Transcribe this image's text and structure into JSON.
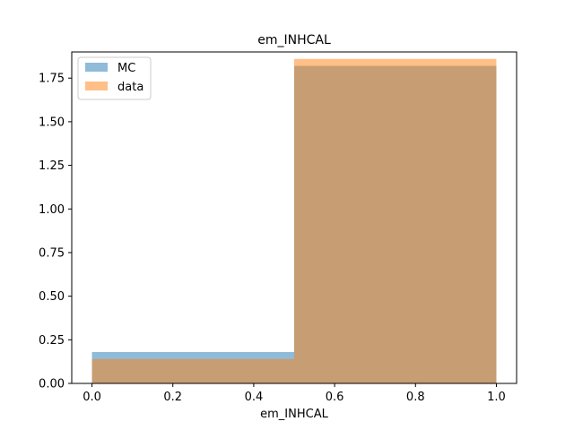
{
  "chart_data": {
    "type": "bar",
    "title": "em_INHCAL",
    "xlabel": "em_INHCAL",
    "ylabel": "",
    "xlim": [
      -0.05,
      1.05
    ],
    "ylim": [
      0,
      1.9
    ],
    "bin_edges": [
      0.0,
      0.5,
      1.0
    ],
    "x_ticks": [
      0.0,
      0.2,
      0.4,
      0.6,
      0.8,
      1.0
    ],
    "x_tick_labels": [
      "0.0",
      "0.2",
      "0.4",
      "0.6",
      "0.8",
      "1.0"
    ],
    "y_ticks": [
      0.0,
      0.25,
      0.5,
      0.75,
      1.0,
      1.25,
      1.5,
      1.75
    ],
    "y_tick_labels": [
      "0.00",
      "0.25",
      "0.50",
      "0.75",
      "1.00",
      "1.25",
      "1.50",
      "1.75"
    ],
    "grid": false,
    "legend_position": "top-left",
    "series": [
      {
        "name": "MC",
        "values": [
          0.18,
          1.82
        ],
        "color": "#1f77b4",
        "opacity": 0.5
      },
      {
        "name": "data",
        "values": [
          0.14,
          1.86
        ],
        "color": "#ff7f0e",
        "opacity": 0.5
      }
    ]
  }
}
